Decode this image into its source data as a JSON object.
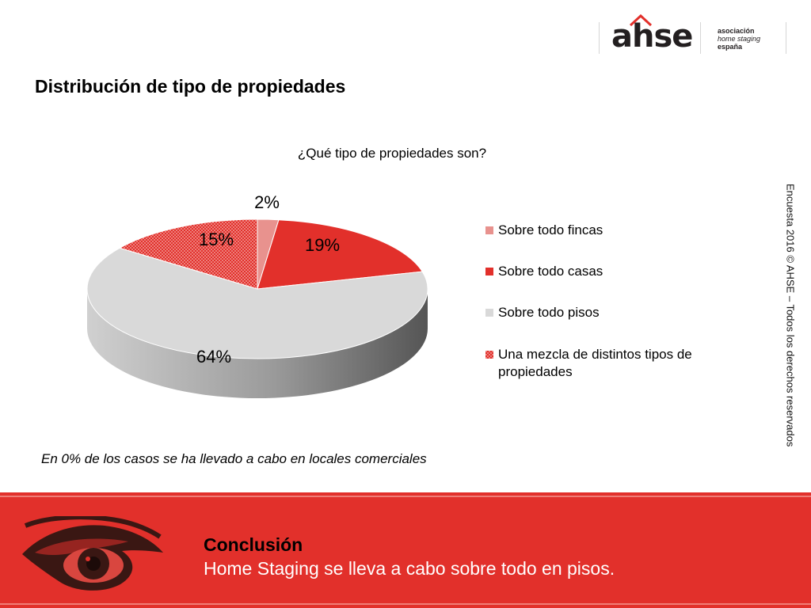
{
  "logo": {
    "wordmark": "ahse",
    "line1": "asociación",
    "line2": "home staging",
    "line3": "españa"
  },
  "title": "Distribución de tipo de propiedades",
  "side_text": "Encuesta 2016 © AHSE – Todos los derechos reservados",
  "note": "En 0% de los casos se ha llevado a cabo en locales comerciales",
  "conclusion": {
    "title": "Conclusión",
    "body": "Home Staging se lleva a cabo sobre todo en pisos."
  },
  "colors": {
    "fincas": "#e8928e",
    "casas": "#e2302b",
    "pisos": "#d9d9d9",
    "mezcla": "#e2302b",
    "band": "#e2302b"
  },
  "chart_data": {
    "type": "pie",
    "title": "¿Qué tipo de propiedades son?",
    "slices": [
      {
        "label": "Sobre todo fincas",
        "value": 2,
        "display": "2%",
        "color": "#e8928e",
        "pattern": false
      },
      {
        "label": "Sobre todo casas",
        "value": 19,
        "display": "19%",
        "color": "#e2302b",
        "pattern": false
      },
      {
        "label": "Sobre todo pisos",
        "value": 64,
        "display": "64%",
        "color": "#d9d9d9",
        "pattern": false
      },
      {
        "label": "Una mezcla de distintos tipos de propiedades",
        "value": 15,
        "display": "15%",
        "color": "#e2302b",
        "pattern": true
      }
    ],
    "legend_position": "right",
    "style": "3d-pie"
  }
}
